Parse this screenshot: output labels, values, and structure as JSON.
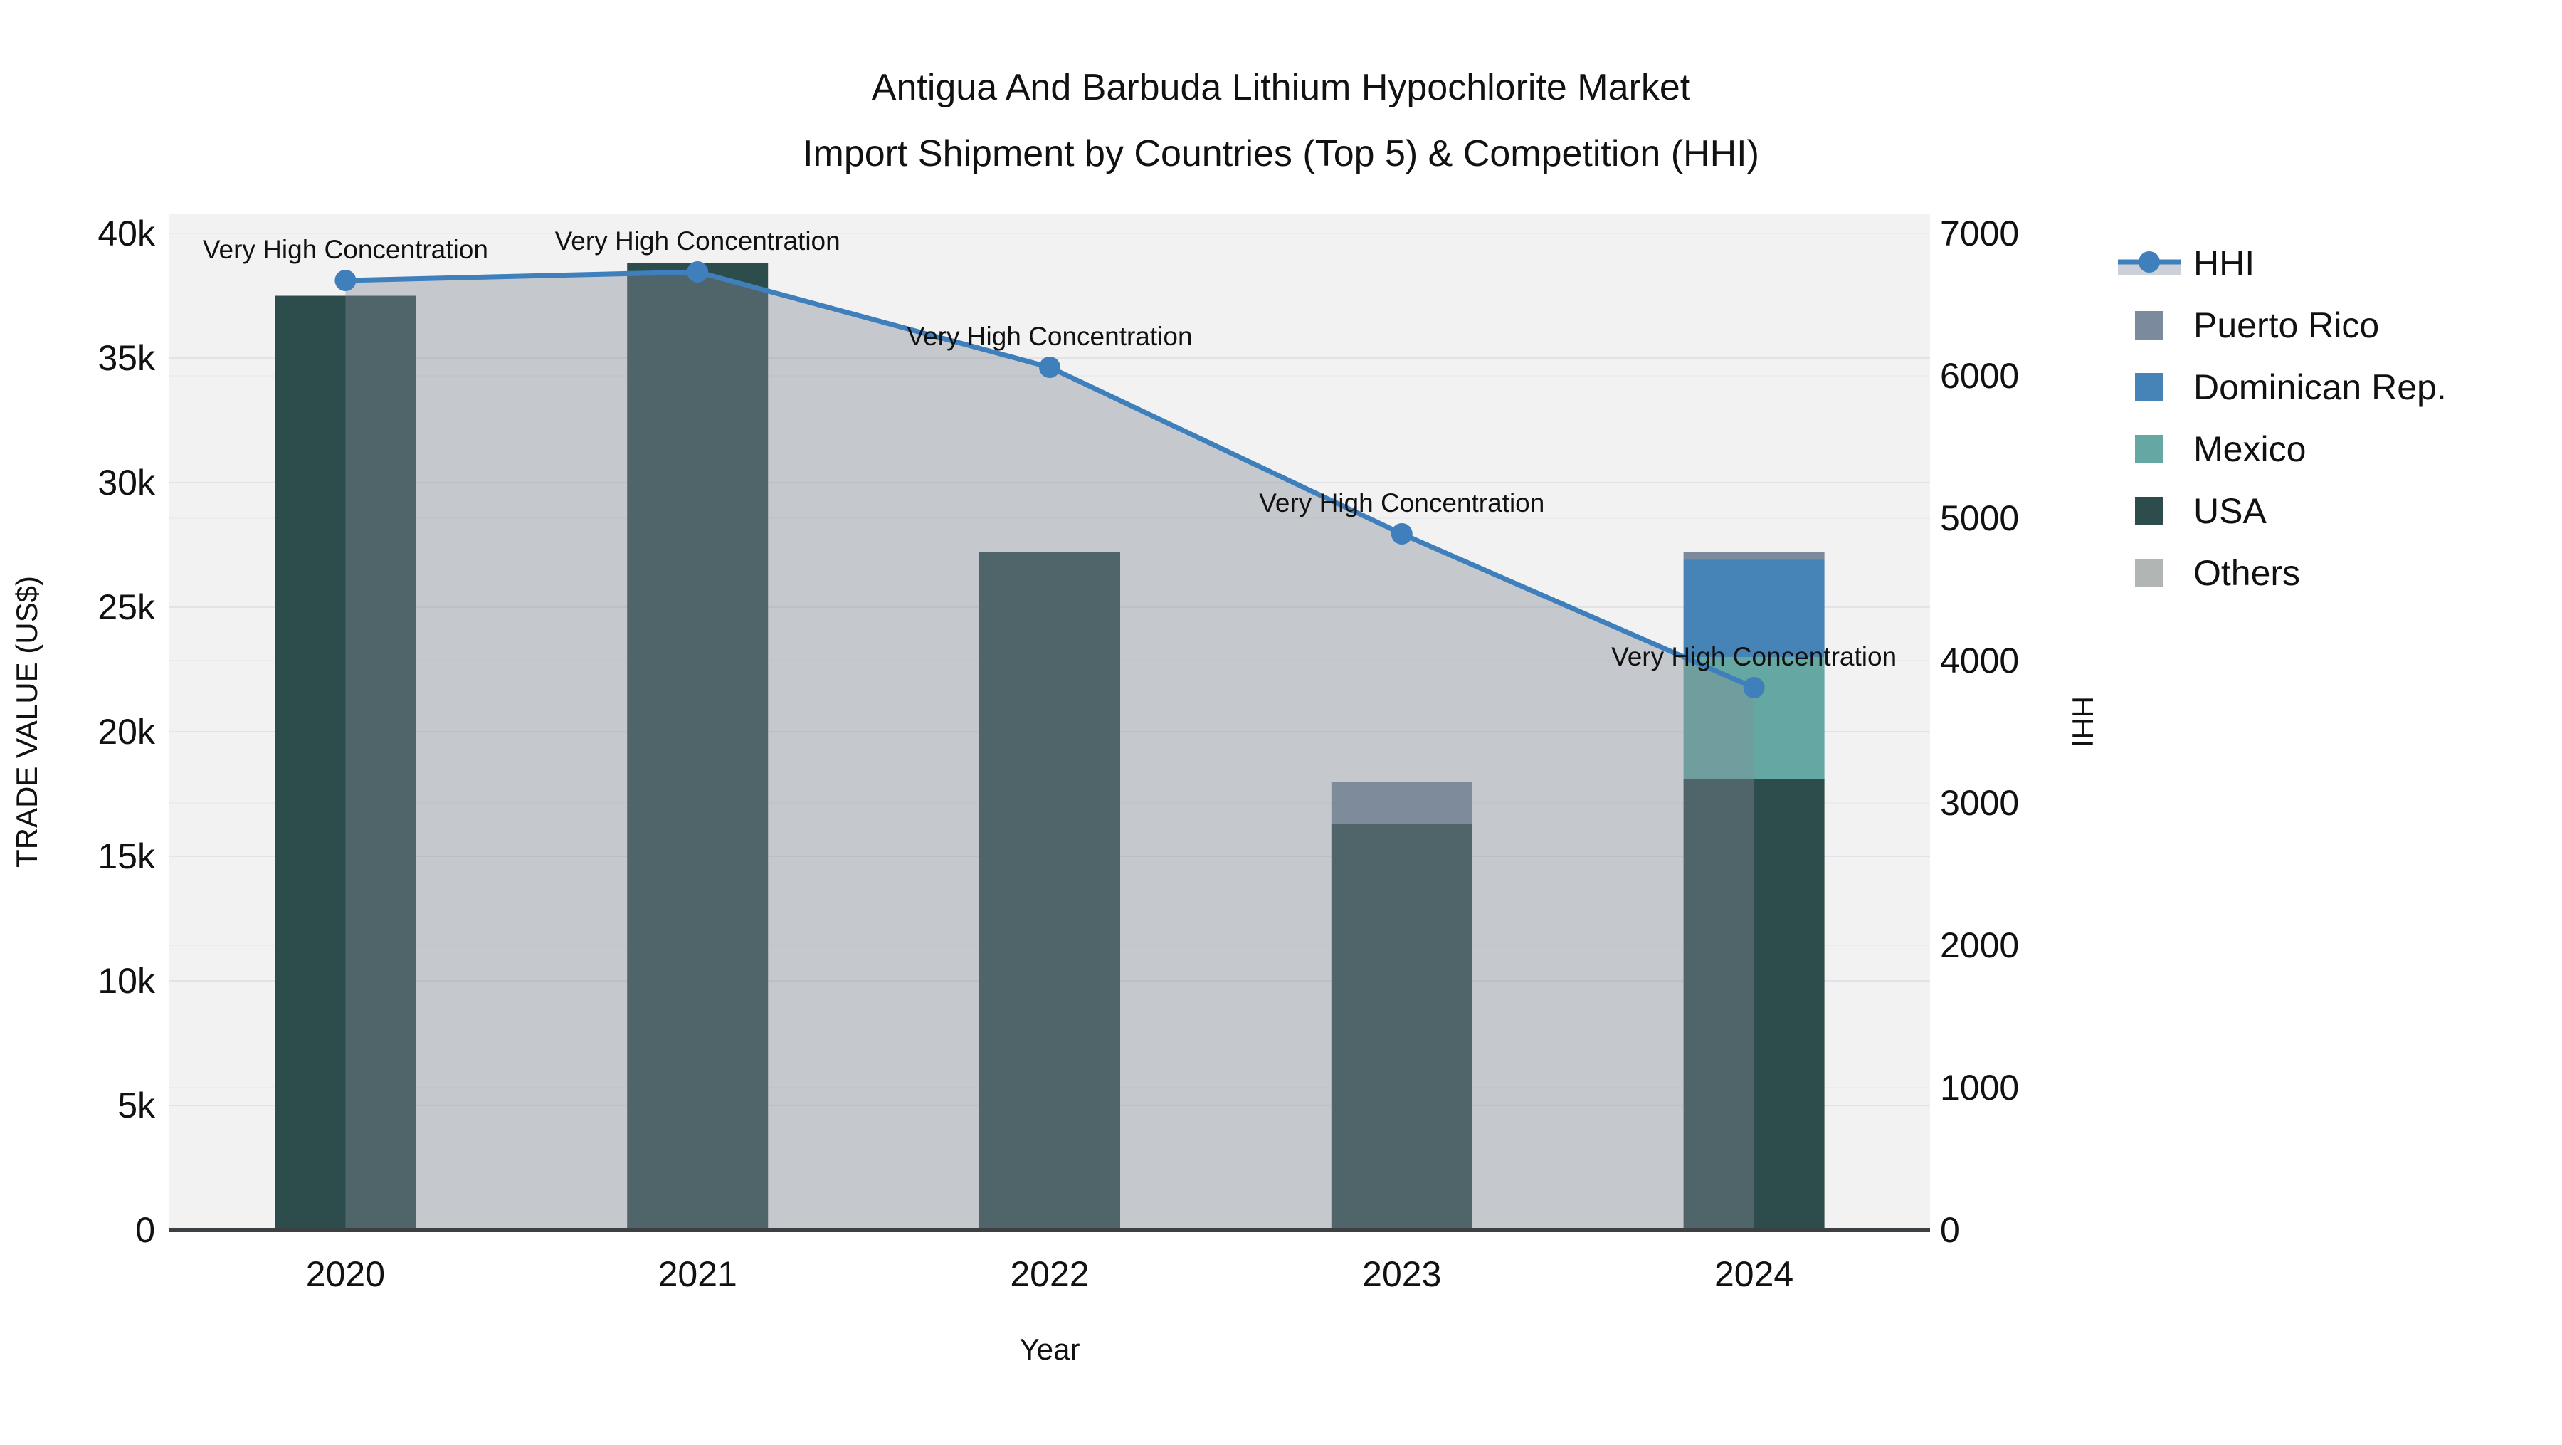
{
  "title": {
    "line1": "Antigua And Barbuda Lithium Hypochlorite Market",
    "line2": "Import Shipment by Countries (Top 5) & Competition (HHI)"
  },
  "axes": {
    "left": {
      "title": "TRADE VALUE (US$)",
      "ticks": [
        "0",
        "5k",
        "10k",
        "15k",
        "20k",
        "25k",
        "30k",
        "35k",
        "40k"
      ]
    },
    "right": {
      "title": "HHI",
      "ticks": [
        "0",
        "1000",
        "2000",
        "3000",
        "4000",
        "5000",
        "6000",
        "7000"
      ]
    },
    "x": {
      "title": "Year",
      "ticks": [
        "2020",
        "2021",
        "2022",
        "2023",
        "2024"
      ]
    }
  },
  "legend": {
    "items": [
      {
        "label": "HHI",
        "type": "line",
        "color": "#3f7fbb",
        "band": "#ccd1d9"
      },
      {
        "label": "Puerto Rico",
        "type": "square",
        "color": "#7b8b9d"
      },
      {
        "label": "Dominican Rep.",
        "type": "square",
        "color": "#4683b7"
      },
      {
        "label": "Mexico",
        "type": "square",
        "color": "#65a8a3"
      },
      {
        "label": "USA",
        "type": "square",
        "color": "#2d4c4c"
      },
      {
        "label": "Others",
        "type": "square",
        "color": "#b1b5b4"
      }
    ]
  },
  "chart_data": {
    "type": "combo: stacked bar (left axis) + line with area fill (right axis)",
    "title": "Antigua And Barbuda Lithium Hypochlorite Market Import Shipment by Countries (Top 5) & Competition (HHI)",
    "categories": [
      "2020",
      "2021",
      "2022",
      "2023",
      "2024"
    ],
    "xlabel": "Year",
    "y_left": {
      "label": "TRADE VALUE (US$)",
      "range": [
        0,
        40000
      ],
      "tick_step": 5000
    },
    "y_right": {
      "label": "HHI",
      "range": [
        0,
        7000
      ],
      "tick_step": 1000
    },
    "grid": true,
    "legend_position": "right",
    "series": [
      {
        "name": "USA",
        "type": "bar",
        "stack_order": 1,
        "color": "#2d4c4c",
        "values": [
          37500,
          38800,
          27200,
          16300,
          18100
        ]
      },
      {
        "name": "Mexico",
        "type": "bar",
        "stack_order": 2,
        "color": "#65a8a3",
        "values": [
          0,
          0,
          0,
          0,
          4900
        ]
      },
      {
        "name": "Dominican Rep.",
        "type": "bar",
        "stack_order": 3,
        "color": "#4683b7",
        "values": [
          0,
          0,
          0,
          0,
          3900
        ]
      },
      {
        "name": "Puerto Rico",
        "type": "bar",
        "stack_order": 4,
        "color": "#7b8b9d",
        "values": [
          0,
          0,
          0,
          1700,
          300
        ]
      },
      {
        "name": "Others",
        "type": "bar",
        "stack_order": 5,
        "color": "#b1b5b4",
        "values": [
          0,
          0,
          0,
          0,
          0
        ]
      }
    ],
    "hhi_line": {
      "name": "HHI",
      "axis": "right",
      "color": "#3f7fbb",
      "area_fill": "rgba(130,140,150,0.40)",
      "values": [
        6670,
        6730,
        6060,
        4890,
        3810
      ]
    },
    "annotations": [
      {
        "x": "2020",
        "text": "Very High Concentration"
      },
      {
        "x": "2021",
        "text": "Very High Concentration"
      },
      {
        "x": "2022",
        "text": "Very High Concentration"
      },
      {
        "x": "2023",
        "text": "Very High Concentration"
      },
      {
        "x": "2024",
        "text": "Very High Concentration"
      }
    ]
  }
}
